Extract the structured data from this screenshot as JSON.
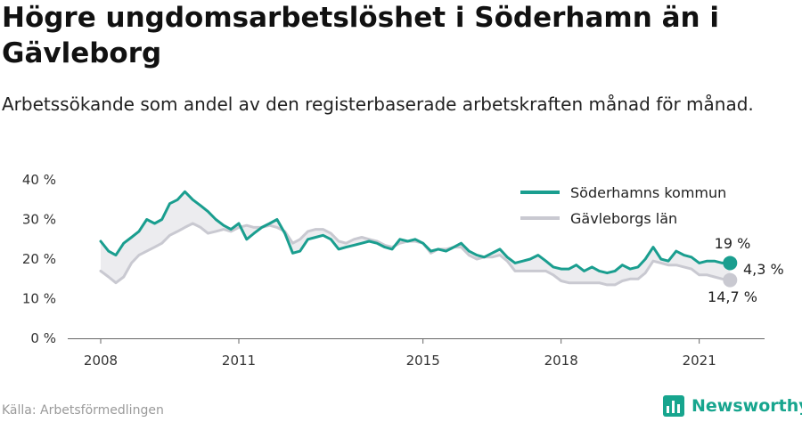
{
  "header": {
    "title": "Högre ungdomsarbetslöshet i Söderhamn än i Gävleborg",
    "subtitle": "Arbetssökande som andel av den registerbaserade arbetskraften månad för månad."
  },
  "colors": {
    "primary": "#1a9e8f",
    "secondary": "#c9c9d1",
    "band": "#ececef",
    "brand": "#17a58e"
  },
  "chart_data": {
    "type": "line",
    "title": "Högre ungdomsarbetslöshet i Söderhamn än i Gävleborg",
    "subtitle": "Arbetssökande som andel av den registerbaserade arbetskraften månad för månad.",
    "ylim": [
      0,
      40
    ],
    "yticks": [
      0,
      10,
      20,
      30,
      40
    ],
    "ytick_labels": [
      "0 %",
      "10 %",
      "20 %",
      "30 %",
      "40 %"
    ],
    "xlim": [
      2008,
      2022.7
    ],
    "xticks": [
      2008,
      2011,
      2015,
      2018,
      2021
    ],
    "xtick_labels": [
      "2008",
      "2011",
      "2015",
      "2018",
      "2021"
    ],
    "legend_placement": "top-right",
    "grid": false,
    "series": [
      {
        "name": "Söderhamns kommun",
        "color": "#1a9e8f",
        "x": [
          2008.0,
          2008.17,
          2008.33,
          2008.5,
          2008.67,
          2008.83,
          2009.0,
          2009.17,
          2009.33,
          2009.5,
          2009.67,
          2009.83,
          2010.0,
          2010.17,
          2010.33,
          2010.5,
          2010.67,
          2010.83,
          2011.0,
          2011.17,
          2011.33,
          2011.5,
          2011.67,
          2011.83,
          2012.0,
          2012.17,
          2012.33,
          2012.5,
          2012.67,
          2012.83,
          2013.0,
          2013.17,
          2013.33,
          2013.5,
          2013.67,
          2013.83,
          2014.0,
          2014.17,
          2014.33,
          2014.5,
          2014.67,
          2014.83,
          2015.0,
          2015.17,
          2015.33,
          2015.5,
          2015.67,
          2015.83,
          2016.0,
          2016.17,
          2016.33,
          2016.5,
          2016.67,
          2016.83,
          2017.0,
          2017.17,
          2017.33,
          2017.5,
          2017.67,
          2017.83,
          2018.0,
          2018.17,
          2018.33,
          2018.5,
          2018.67,
          2018.83,
          2019.0,
          2019.17,
          2019.33,
          2019.5,
          2019.67,
          2019.83,
          2020.0,
          2020.17,
          2020.33,
          2020.5,
          2020.67,
          2020.83,
          2021.0,
          2021.17,
          2021.33,
          2021.5,
          2021.67
        ],
        "values": [
          24.5,
          22,
          21,
          24,
          25.5,
          27,
          30,
          29,
          30,
          34,
          35,
          37,
          35,
          33.5,
          32,
          30,
          28.5,
          27.5,
          29,
          25,
          26.5,
          28,
          29,
          30,
          26.5,
          21.5,
          22,
          25,
          25.5,
          26,
          25,
          22.5,
          23,
          23.5,
          24,
          24.5,
          24,
          23,
          22.5,
          25,
          24.5,
          25,
          24,
          22,
          22.5,
          22,
          23,
          24,
          22,
          21,
          20.5,
          21.5,
          22.5,
          20.5,
          19,
          19.5,
          20,
          21,
          19.5,
          18,
          17.5,
          17.5,
          18.5,
          17,
          18,
          17,
          16.5,
          17,
          18.5,
          17.5,
          18,
          20,
          23,
          20,
          19.5,
          22,
          21,
          20.5,
          19,
          19.5,
          19.5,
          19,
          19
        ],
        "end_label": "19 %"
      },
      {
        "name": "Gävleborgs län",
        "color": "#c9c9d1",
        "x": [
          2008.0,
          2008.17,
          2008.33,
          2008.5,
          2008.67,
          2008.83,
          2009.0,
          2009.17,
          2009.33,
          2009.5,
          2009.67,
          2009.83,
          2010.0,
          2010.17,
          2010.33,
          2010.5,
          2010.67,
          2010.83,
          2011.0,
          2011.17,
          2011.33,
          2011.5,
          2011.67,
          2011.83,
          2012.0,
          2012.17,
          2012.33,
          2012.5,
          2012.67,
          2012.83,
          2013.0,
          2013.17,
          2013.33,
          2013.5,
          2013.67,
          2013.83,
          2014.0,
          2014.17,
          2014.33,
          2014.5,
          2014.67,
          2014.83,
          2015.0,
          2015.17,
          2015.33,
          2015.5,
          2015.67,
          2015.83,
          2016.0,
          2016.17,
          2016.33,
          2016.5,
          2016.67,
          2016.83,
          2017.0,
          2017.17,
          2017.33,
          2017.5,
          2017.67,
          2017.83,
          2018.0,
          2018.17,
          2018.33,
          2018.5,
          2018.67,
          2018.83,
          2019.0,
          2019.17,
          2019.33,
          2019.5,
          2019.67,
          2019.83,
          2020.0,
          2020.17,
          2020.33,
          2020.5,
          2020.67,
          2020.83,
          2021.0,
          2021.17,
          2021.33,
          2021.5,
          2021.67
        ],
        "values": [
          17,
          15.5,
          14,
          15.5,
          19,
          21,
          22,
          23,
          24,
          26,
          27,
          28,
          29,
          28,
          26.5,
          27,
          27.5,
          27,
          28,
          28.5,
          28,
          28,
          28.5,
          28,
          27,
          24,
          25,
          27,
          27.5,
          27.5,
          26.5,
          24.5,
          24,
          25,
          25.5,
          25,
          24.5,
          23.5,
          23,
          24,
          24.5,
          24.5,
          24,
          21.5,
          22.5,
          22.5,
          23,
          23,
          21,
          20,
          20.5,
          20.5,
          21,
          19.5,
          17,
          17,
          17,
          17,
          17,
          16,
          14.5,
          14,
          14,
          14,
          14,
          14,
          13.5,
          13.5,
          14.5,
          15,
          15,
          16.5,
          19.5,
          19,
          18.5,
          18.5,
          18,
          17.5,
          16,
          16,
          15.5,
          15,
          14.7
        ],
        "end_label": "14,7 %"
      }
    ],
    "annotations": {
      "difference_label": "4,3 %"
    }
  },
  "source": "Källa: Arbetsförmedlingen",
  "brand": {
    "name": "Newsworthy",
    "icon": "bar-chart-logo-icon"
  }
}
